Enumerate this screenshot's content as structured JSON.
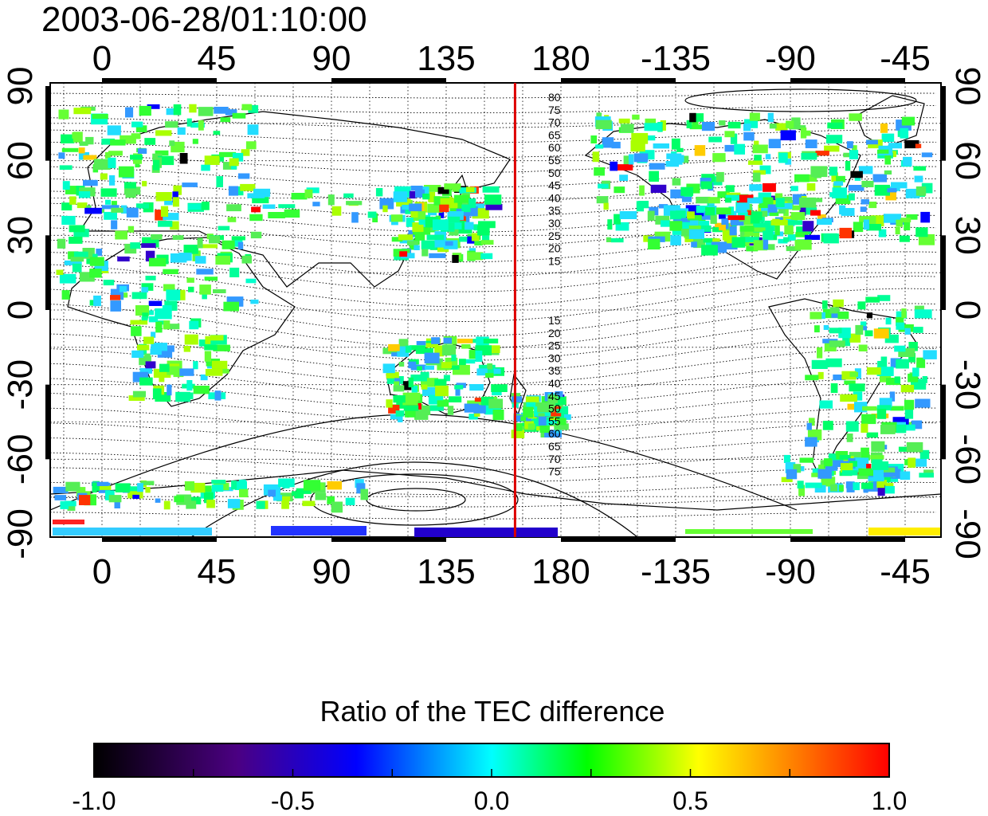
{
  "title": "2003-06-28/01:10:00",
  "map": {
    "top_lon_labels": [
      "0",
      "45",
      "90",
      "135",
      "180",
      "-135",
      "-90",
      "-45"
    ],
    "bottom_lon_labels": [
      "0",
      "45",
      "90",
      "135",
      "180",
      "-135",
      "-90",
      "-45"
    ],
    "left_lat_labels": [
      "90",
      "60",
      "30",
      "0",
      "-30",
      "-60",
      "-90"
    ],
    "right_lat_labels": [
      "90",
      "60",
      "30",
      "0",
      "-30",
      "-60",
      "-90"
    ],
    "north_contour_labels": [
      "80",
      "75",
      "70",
      "65",
      "60",
      "55",
      "50",
      "45",
      "40",
      "35",
      "30",
      "25",
      "20",
      "15"
    ],
    "south_contour_labels": [
      "15",
      "20",
      "25",
      "30",
      "35",
      "40",
      "45",
      "50",
      "55",
      "60",
      "65",
      "70",
      "75"
    ],
    "meridian_line_color": "#dd0000",
    "meridian_line_lon": 162
  },
  "colorbar": {
    "title": "Ratio of the TEC difference",
    "tick_labels": [
      "-1.0",
      "-0.5",
      "0.0",
      "0.5",
      "1.0"
    ],
    "range": [
      -1.0,
      1.0
    ],
    "colors": [
      "#000000",
      "#4b0082",
      "#0000ff",
      "#00ffff",
      "#00ff00",
      "#ffff00",
      "#ff0000"
    ]
  }
}
